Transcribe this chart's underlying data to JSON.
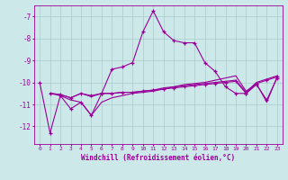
{
  "xlabel": "Windchill (Refroidissement éolien,°C)",
  "background_color": "#cce8e8",
  "grid_color": "#aacccc",
  "line_color": "#990099",
  "xlim": [
    -0.5,
    23.5
  ],
  "ylim": [
    -12.8,
    -6.5
  ],
  "yticks": [
    -12,
    -11,
    -10,
    -9,
    -8,
    -7
  ],
  "xticks": [
    0,
    1,
    2,
    3,
    4,
    5,
    6,
    7,
    8,
    9,
    10,
    11,
    12,
    13,
    14,
    15,
    16,
    17,
    18,
    19,
    20,
    21,
    22,
    23
  ],
  "line1_x": [
    0,
    1,
    2,
    3,
    4,
    5,
    6,
    7,
    8,
    9,
    10,
    11,
    12,
    13,
    14,
    15,
    16,
    17,
    18,
    19,
    20,
    21,
    22,
    23
  ],
  "line1_y": [
    -10.0,
    -12.3,
    -10.6,
    -11.2,
    -10.9,
    -11.5,
    -10.5,
    -9.4,
    -9.3,
    -9.1,
    -7.7,
    -6.75,
    -7.7,
    -8.1,
    -8.2,
    -8.2,
    -9.1,
    -9.5,
    -10.2,
    -10.5,
    -10.5,
    -10.1,
    -10.8,
    -9.8
  ],
  "line2_x": [
    1,
    2,
    3,
    4,
    5,
    6,
    7,
    8,
    9,
    10,
    11,
    12,
    13,
    14,
    15,
    16,
    17,
    18,
    19,
    20,
    21,
    22,
    23
  ],
  "line2_y": [
    -10.5,
    -10.55,
    -10.7,
    -10.5,
    -10.6,
    -10.5,
    -10.5,
    -10.45,
    -10.45,
    -10.4,
    -10.35,
    -10.3,
    -10.25,
    -10.2,
    -10.15,
    -10.1,
    -10.05,
    -10.0,
    -9.95,
    -10.5,
    -10.05,
    -9.9,
    -9.75
  ],
  "line3_x": [
    1,
    2,
    3,
    4,
    5,
    6,
    7,
    8,
    9,
    10,
    11,
    12,
    13,
    14,
    15,
    16,
    17,
    18,
    19,
    20,
    21,
    22,
    23
  ],
  "line3_y": [
    -10.5,
    -10.6,
    -10.8,
    -10.9,
    -11.5,
    -10.9,
    -10.7,
    -10.6,
    -10.5,
    -10.45,
    -10.4,
    -10.3,
    -10.2,
    -10.1,
    -10.05,
    -10.0,
    -9.9,
    -9.8,
    -9.7,
    -10.4,
    -10.05,
    -10.9,
    -9.75
  ],
  "line4_x": [
    1,
    2,
    3,
    4,
    5,
    6,
    7,
    8,
    9,
    10,
    11,
    12,
    13,
    14,
    15,
    16,
    17,
    18,
    19,
    20,
    21,
    22,
    23
  ],
  "line4_y": [
    -10.5,
    -10.55,
    -10.7,
    -10.5,
    -10.65,
    -10.5,
    -10.5,
    -10.45,
    -10.45,
    -10.4,
    -10.35,
    -10.25,
    -10.2,
    -10.15,
    -10.1,
    -10.05,
    -10.0,
    -9.95,
    -9.9,
    -10.45,
    -10.0,
    -9.85,
    -9.7
  ]
}
